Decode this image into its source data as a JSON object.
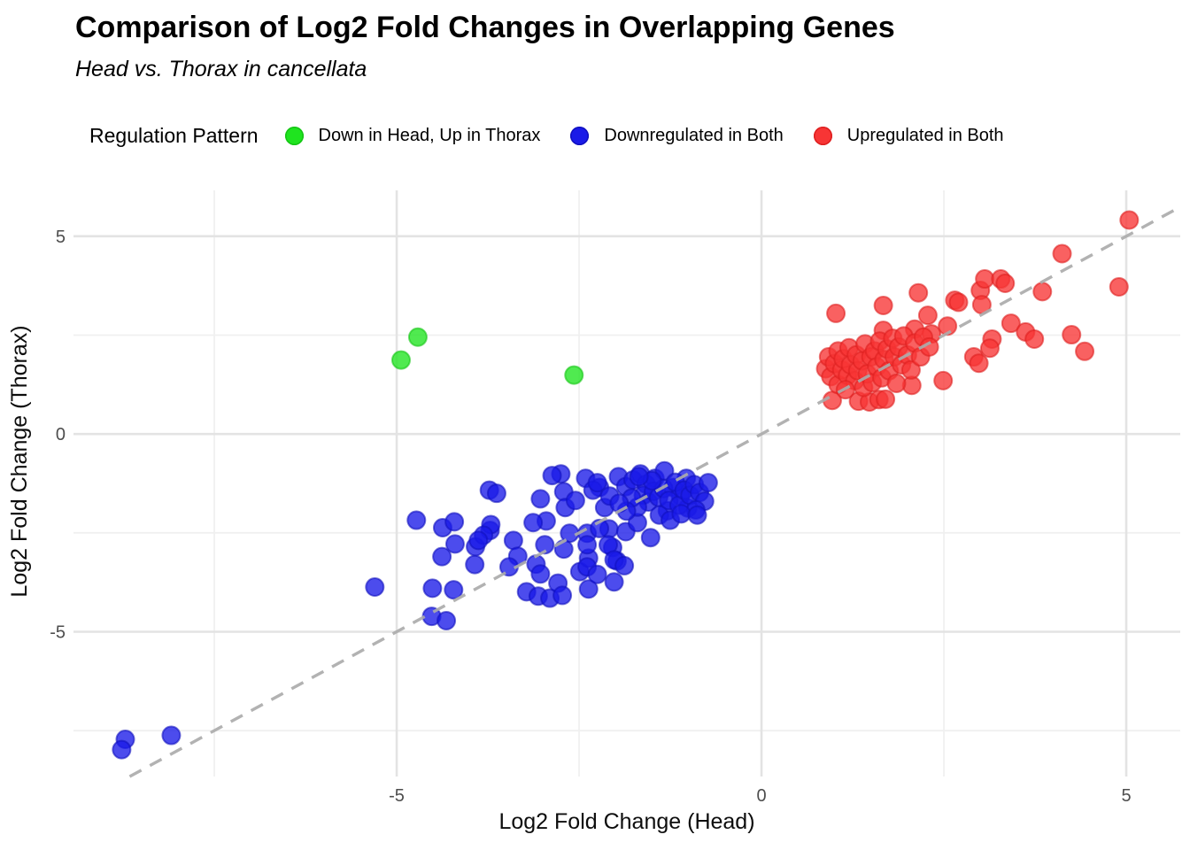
{
  "title": "Comparison of Log2 Fold Changes in Overlapping Genes",
  "subtitle": "Head vs. Thorax in cancellata",
  "legend": {
    "title": "Regulation Pattern",
    "items": [
      {
        "label": "Down in Head, Up in Thorax",
        "color": "#1FE41F",
        "stroke": "#14C414"
      },
      {
        "label": "Downregulated in Both",
        "color": "#1A1AE8",
        "stroke": "#1010BE"
      },
      {
        "label": "Upregulated in Both",
        "color": "#F73535",
        "stroke": "#DD1F1F"
      }
    ]
  },
  "axes": {
    "x_label": "Log2 Fold Change (Head)",
    "y_label": "Log2 Fold Change (Thorax)"
  },
  "chart_data": {
    "type": "scatter",
    "title": "Comparison of Log2 Fold Changes in Overlapping Genes",
    "subtitle": "Head vs. Thorax in cancellata",
    "xlabel": "Log2 Fold Change (Head)",
    "ylabel": "Log2 Fold Change (Thorax)",
    "xlim": [
      -9.43,
      5.74
    ],
    "ylim": [
      -8.66,
      6.16
    ],
    "x_ticks": [
      -5,
      0,
      5
    ],
    "y_ticks": [
      -5,
      0,
      5
    ],
    "x_minor_ticks": [
      -7.5,
      -2.5,
      2.5
    ],
    "y_minor_ticks": [
      -7.5,
      -2.5,
      2.5
    ],
    "grid": "on",
    "legend_position": "top",
    "reference_line": {
      "type": "identity y=x",
      "style": "dashed",
      "color": "#ABABAB"
    },
    "point_style": {
      "radius": 10,
      "fill_opacity": 0.78
    },
    "series": [
      {
        "name": "Down in Head, Up in Thorax",
        "color": "#1FE41F",
        "stroke": "#14C414",
        "points": [
          [
            -4.71,
            2.45
          ],
          [
            -4.94,
            1.87
          ],
          [
            -2.57,
            1.49
          ]
        ]
      },
      {
        "name": "Downregulated in Both",
        "color": "#1A1AE8",
        "stroke": "#1010BE",
        "points": [
          [
            -5.3,
            -3.87
          ],
          [
            -4.73,
            -2.18
          ],
          [
            -4.51,
            -3.9
          ],
          [
            -4.37,
            -2.37
          ],
          [
            -4.38,
            -3.1
          ],
          [
            -4.21,
            -2.22
          ],
          [
            -4.2,
            -2.78
          ],
          [
            -4.22,
            -3.94
          ],
          [
            -4.52,
            -4.61
          ],
          [
            -4.32,
            -4.72
          ],
          [
            -3.92,
            -2.85
          ],
          [
            -3.93,
            -3.3
          ],
          [
            -3.72,
            -2.44
          ],
          [
            -3.73,
            -1.42
          ],
          [
            -3.63,
            -1.5
          ],
          [
            -3.71,
            -2.29
          ],
          [
            -3.81,
            -2.56
          ],
          [
            -3.88,
            -2.69
          ],
          [
            -3.4,
            -2.69
          ],
          [
            -3.34,
            -3.09
          ],
          [
            -3.46,
            -3.36
          ],
          [
            -3.03,
            -1.64
          ],
          [
            -2.95,
            -2.2
          ],
          [
            -3.13,
            -2.24
          ],
          [
            -2.97,
            -2.8
          ],
          [
            -3.09,
            -3.29
          ],
          [
            -3.03,
            -3.54
          ],
          [
            -3.22,
            -3.99
          ],
          [
            -3.06,
            -4.1
          ],
          [
            -2.9,
            -4.15
          ],
          [
            -2.75,
            -1.01
          ],
          [
            -2.71,
            -1.46
          ],
          [
            -2.69,
            -1.86
          ],
          [
            -2.55,
            -1.68
          ],
          [
            -2.63,
            -2.51
          ],
          [
            -2.71,
            -2.91
          ],
          [
            -2.49,
            -3.48
          ],
          [
            -2.79,
            -3.77
          ],
          [
            -2.73,
            -4.08
          ],
          [
            -2.37,
            -3.14
          ],
          [
            -2.39,
            -2.51
          ],
          [
            -2.22,
            -1.35
          ],
          [
            -2.15,
            -1.86
          ],
          [
            -2.09,
            -2.4
          ],
          [
            -2.04,
            -2.87
          ],
          [
            -1.98,
            -3.21
          ],
          [
            -2.87,
            -1.05
          ],
          [
            -2.41,
            -1.12
          ],
          [
            -2.31,
            -1.42
          ],
          [
            -2.25,
            -1.23
          ],
          [
            -2.08,
            -1.57
          ],
          [
            -1.96,
            -1.08
          ],
          [
            -1.86,
            -1.33
          ],
          [
            -1.76,
            -1.16
          ],
          [
            -1.66,
            -1.01
          ],
          [
            -1.58,
            -1.27
          ],
          [
            -1.46,
            -1.12
          ],
          [
            -1.33,
            -0.93
          ],
          [
            -1.29,
            -1.94
          ],
          [
            -1.21,
            -1.35
          ],
          [
            -1.11,
            -1.57
          ],
          [
            -1.03,
            -1.12
          ],
          [
            -1.01,
            -1.87
          ],
          [
            -2.22,
            -2.39
          ],
          [
            -2.1,
            -2.8
          ],
          [
            -2.02,
            -3.18
          ],
          [
            -2.39,
            -3.36
          ],
          [
            -2.37,
            -3.92
          ],
          [
            -2.25,
            -3.55
          ],
          [
            -2.02,
            -3.74
          ],
          [
            -1.86,
            -2.47
          ],
          [
            -1.7,
            -2.24
          ],
          [
            -1.52,
            -2.62
          ],
          [
            -1.88,
            -3.33
          ],
          [
            -2.39,
            -2.8
          ],
          [
            -1.62,
            -1.55
          ],
          [
            -1.55,
            -1.72
          ],
          [
            -1.48,
            -1.45
          ],
          [
            -1.41,
            -1.6
          ],
          [
            -1.34,
            -1.38
          ],
          [
            -1.27,
            -1.68
          ],
          [
            -1.18,
            -1.22
          ],
          [
            -1.13,
            -1.8
          ],
          [
            -1.06,
            -1.42
          ],
          [
            -0.98,
            -1.55
          ],
          [
            -0.92,
            -1.28
          ],
          [
            -0.85,
            -1.48
          ],
          [
            -0.78,
            -1.7
          ],
          [
            -0.9,
            -1.92
          ],
          [
            -1.7,
            -1.85
          ],
          [
            -1.78,
            -1.62
          ],
          [
            -1.85,
            -1.95
          ],
          [
            -1.95,
            -1.75
          ],
          [
            -1.4,
            -2.05
          ],
          [
            -1.25,
            -2.18
          ],
          [
            -1.1,
            -2.02
          ],
          [
            -0.88,
            -2.05
          ],
          [
            -1.5,
            -1.18
          ],
          [
            -1.68,
            -1.08
          ],
          [
            -0.73,
            -1.23
          ],
          [
            -8.72,
            -7.72
          ],
          [
            -8.77,
            -7.98
          ],
          [
            -8.09,
            -7.62
          ]
        ]
      },
      {
        "name": "Upregulated in Both",
        "color": "#F73535",
        "stroke": "#DD1F1F",
        "points": [
          [
            5.04,
            5.41
          ],
          [
            4.12,
            4.56
          ],
          [
            4.9,
            3.72
          ],
          [
            3.85,
            3.6
          ],
          [
            1.02,
            3.05
          ],
          [
            1.67,
            3.25
          ],
          [
            2.15,
            3.57
          ],
          [
            2.65,
            3.38
          ],
          [
            2.7,
            3.33
          ],
          [
            3.0,
            3.63
          ],
          [
            3.06,
            3.92
          ],
          [
            3.28,
            3.92
          ],
          [
            3.34,
            3.81
          ],
          [
            3.02,
            3.27
          ],
          [
            2.28,
            3.0
          ],
          [
            2.1,
            2.65
          ],
          [
            1.67,
            2.62
          ],
          [
            2.33,
            2.53
          ],
          [
            2.55,
            2.73
          ],
          [
            3.42,
            2.8
          ],
          [
            3.62,
            2.58
          ],
          [
            3.74,
            2.4
          ],
          [
            4.25,
            2.51
          ],
          [
            4.43,
            2.09
          ],
          [
            3.16,
            2.4
          ],
          [
            3.13,
            2.17
          ],
          [
            2.91,
            1.95
          ],
          [
            2.98,
            1.79
          ],
          [
            2.49,
            1.35
          ],
          [
            0.97,
            0.85
          ],
          [
            1.33,
            0.83
          ],
          [
            1.48,
            0.81
          ],
          [
            1.61,
            0.87
          ],
          [
            1.7,
            0.88
          ],
          [
            2.06,
            1.23
          ],
          [
            0.88,
            1.65
          ],
          [
            0.92,
            1.95
          ],
          [
            0.95,
            1.45
          ],
          [
            1.0,
            1.78
          ],
          [
            1.05,
            2.1
          ],
          [
            1.05,
            1.25
          ],
          [
            1.1,
            1.62
          ],
          [
            1.12,
            1.9
          ],
          [
            1.18,
            1.48
          ],
          [
            1.2,
            2.18
          ],
          [
            1.22,
            1.75
          ],
          [
            1.28,
            1.35
          ],
          [
            1.3,
            2.0
          ],
          [
            1.32,
            1.6
          ],
          [
            1.38,
            1.85
          ],
          [
            1.4,
            1.18
          ],
          [
            1.42,
            2.28
          ],
          [
            1.45,
            1.52
          ],
          [
            1.5,
            1.95
          ],
          [
            1.52,
            1.3
          ],
          [
            1.55,
            2.1
          ],
          [
            1.58,
            1.7
          ],
          [
            1.62,
            2.35
          ],
          [
            1.65,
            1.42
          ],
          [
            1.68,
            1.88
          ],
          [
            1.72,
            2.15
          ],
          [
            1.75,
            1.6
          ],
          [
            1.8,
            2.42
          ],
          [
            1.82,
            1.95
          ],
          [
            1.85,
            1.28
          ],
          [
            1.88,
            2.2
          ],
          [
            1.92,
            1.75
          ],
          [
            1.95,
            2.48
          ],
          [
            2.0,
            2.0
          ],
          [
            2.05,
            1.62
          ],
          [
            2.1,
            2.3
          ],
          [
            2.18,
            1.95
          ],
          [
            2.22,
            2.45
          ],
          [
            2.3,
            2.2
          ],
          [
            1.15,
            1.12
          ]
        ]
      }
    ],
    "style": {
      "major_grid_color": "#E3E3E3",
      "minor_grid_color": "#F0F0F0",
      "tick_label_color": "#4D4D4D"
    }
  }
}
